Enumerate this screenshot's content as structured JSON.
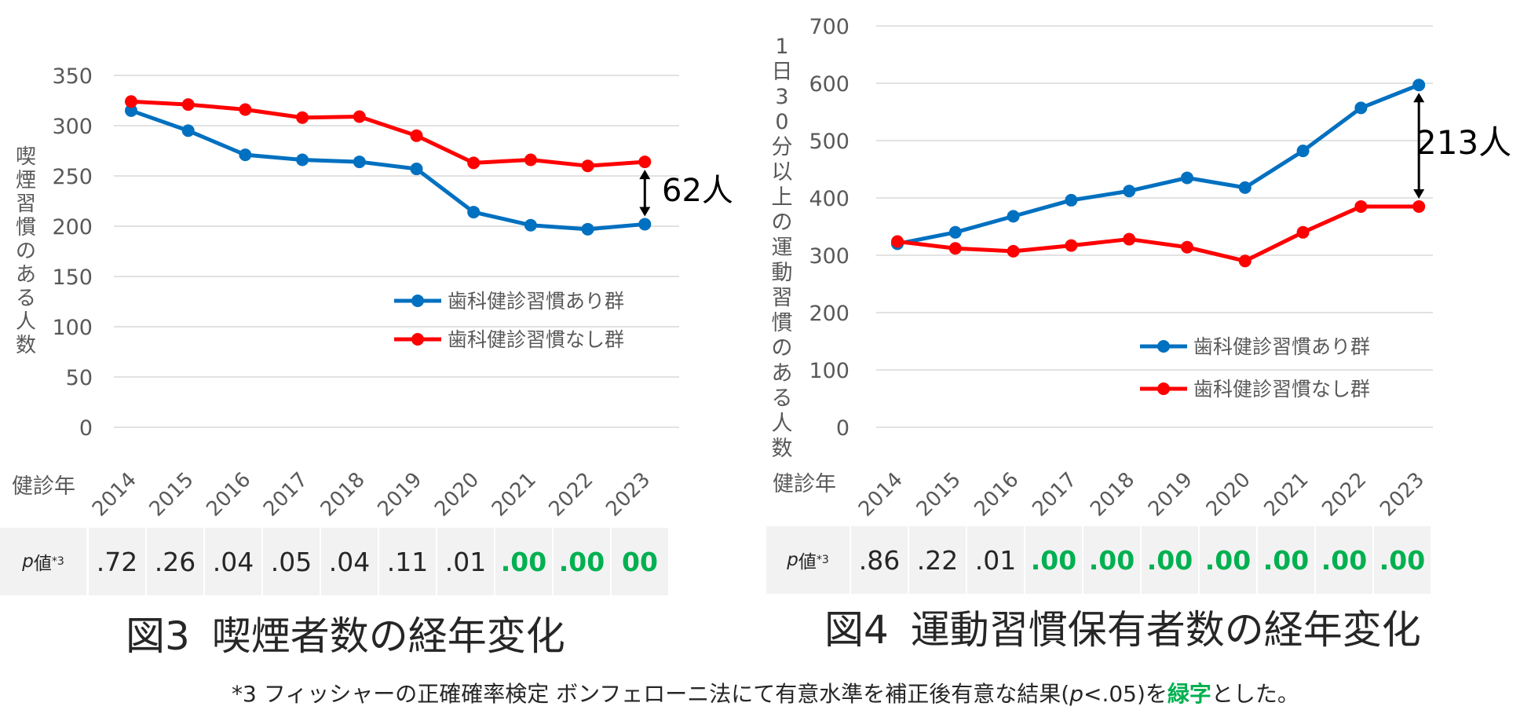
{
  "chart_data": [
    {
      "type": "line",
      "categories": [
        "2014",
        "2015",
        "2016",
        "2017",
        "2018",
        "2019",
        "2020",
        "2021",
        "2022",
        "2023"
      ],
      "series": [
        {
          "name": "歯科健診習慣あり群",
          "color": "#0070c0",
          "values": [
            315,
            295,
            271,
            266,
            264,
            257,
            214,
            201,
            197,
            202
          ]
        },
        {
          "name": "歯科健診習慣なし群",
          "color": "#ff0000",
          "values": [
            324,
            321,
            316,
            308,
            309,
            290,
            263,
            266,
            260,
            264
          ]
        }
      ],
      "ylim": [
        0,
        350
      ],
      "yticks": [
        "0",
        "50",
        "100",
        "150",
        "200",
        "250",
        "300",
        "350"
      ],
      "ylabel": "喫煙習慣のある人数",
      "xlabel": "健診年",
      "gap_label": "62人",
      "p_label": "p値*3",
      "p_values": [
        ".72",
        ".26",
        ".04",
        ".05",
        ".04",
        ".11",
        ".01",
        ".00",
        ".00",
        "00"
      ],
      "p_significant": [
        false,
        false,
        false,
        false,
        false,
        false,
        false,
        true,
        true,
        true
      ],
      "caption": "図3 喫煙者数の経年変化"
    },
    {
      "type": "line",
      "categories": [
        "2014",
        "2015",
        "2016",
        "2017",
        "2018",
        "2019",
        "2020",
        "2021",
        "2022",
        "2023"
      ],
      "series": [
        {
          "name": "歯科健診習慣あり群",
          "color": "#0070c0",
          "values": [
            320,
            340,
            368,
            396,
            412,
            435,
            418,
            482,
            557,
            597
          ]
        },
        {
          "name": "歯科健診習慣なし群",
          "color": "#ff0000",
          "values": [
            324,
            312,
            307,
            317,
            328,
            314,
            290,
            340,
            385,
            385
          ]
        }
      ],
      "ylim": [
        0,
        700
      ],
      "yticks": [
        "0",
        "100",
        "200",
        "300",
        "400",
        "500",
        "600",
        "700"
      ],
      "ylabel": "1日30分以上の運動習慣のある人数",
      "xlabel": "健診年",
      "gap_label": "213人",
      "p_label": "p値*3",
      "p_values": [
        ".86",
        ".22",
        ".01",
        ".00",
        ".00",
        ".00",
        ".00",
        ".00",
        ".00",
        ".00"
      ],
      "p_significant": [
        false,
        false,
        false,
        true,
        true,
        true,
        true,
        true,
        true,
        true
      ],
      "caption": "図4 運動習慣保有者数の経年変化"
    }
  ],
  "footnote": {
    "prefix": "*3 フィッシャーの正確確率検定 ボンフェローニ法にて有意水準を補正後有意な結果(",
    "p_italic": "p",
    "middle": "<.05)を",
    "green": "緑字",
    "suffix": "とした。"
  },
  "colors": {
    "blue": "#0070c0",
    "red": "#ff0000",
    "green": "#00b050",
    "grid": "#d9d9d9"
  }
}
